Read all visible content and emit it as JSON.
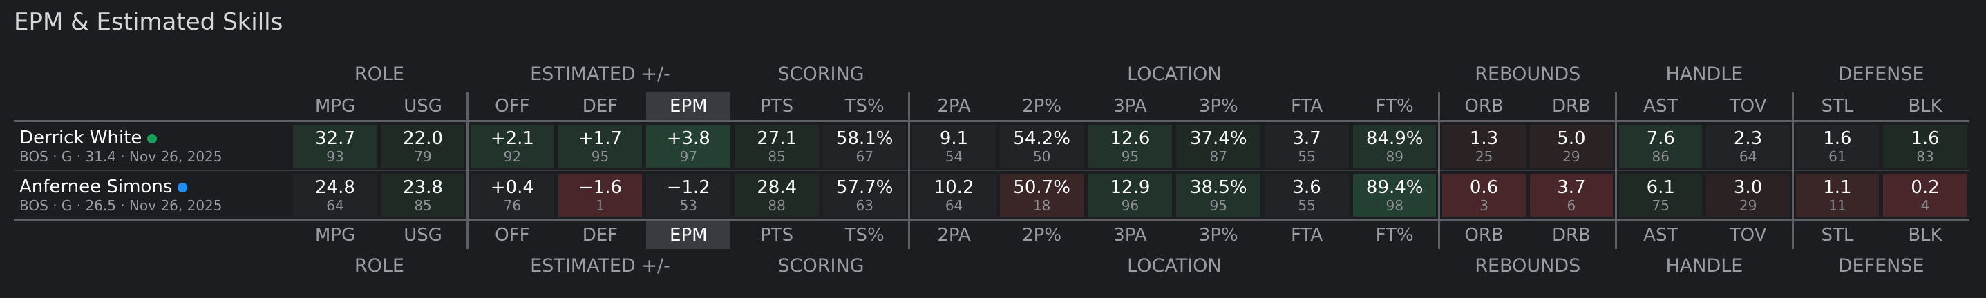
{
  "title": "EPM & Estimated Skills",
  "groups": [
    "ROLE",
    "ESTIMATED +/-",
    "SCORING",
    "LOCATION",
    "REBOUNDS",
    "HANDLE",
    "DEFENSE"
  ],
  "columns": [
    "MPG",
    "USG",
    "OFF",
    "DEF",
    "EPM",
    "PTS",
    "TS%",
    "2PA",
    "2P%",
    "3PA",
    "3P%",
    "FTA",
    "FT%",
    "ORB",
    "DRB",
    "AST",
    "TOV",
    "STL",
    "BLK"
  ],
  "players": [
    {
      "name": "Derrick White",
      "meta": "BOS · G · 31.4 · Nov 26, 2025",
      "dot_color": "#18a05a",
      "stats": [
        {
          "value": "32.7",
          "pct": "93"
        },
        {
          "value": "22.0",
          "pct": "79"
        },
        {
          "value": "+2.1",
          "pct": "92"
        },
        {
          "value": "+1.7",
          "pct": "95"
        },
        {
          "value": "+3.8",
          "pct": "97"
        },
        {
          "value": "27.1",
          "pct": "85"
        },
        {
          "value": "58.1%",
          "pct": "67"
        },
        {
          "value": "9.1",
          "pct": "54"
        },
        {
          "value": "54.2%",
          "pct": "50"
        },
        {
          "value": "12.6",
          "pct": "95"
        },
        {
          "value": "37.4%",
          "pct": "87"
        },
        {
          "value": "3.7",
          "pct": "55"
        },
        {
          "value": "84.9%",
          "pct": "89"
        },
        {
          "value": "1.3",
          "pct": "25"
        },
        {
          "value": "5.0",
          "pct": "29"
        },
        {
          "value": "7.6",
          "pct": "86"
        },
        {
          "value": "2.3",
          "pct": "64"
        },
        {
          "value": "1.6",
          "pct": "61"
        },
        {
          "value": "1.6",
          "pct": "83"
        }
      ]
    },
    {
      "name": "Anfernee Simons",
      "meta": "BOS · G · 26.5 · Nov 26, 2025",
      "dot_color": "#1e90ff",
      "stats": [
        {
          "value": "24.8",
          "pct": "64"
        },
        {
          "value": "23.8",
          "pct": "85"
        },
        {
          "value": "+0.4",
          "pct": "76"
        },
        {
          "value": "−1.6",
          "pct": "1"
        },
        {
          "value": "−1.2",
          "pct": "53"
        },
        {
          "value": "28.4",
          "pct": "88"
        },
        {
          "value": "57.7%",
          "pct": "63"
        },
        {
          "value": "10.2",
          "pct": "64"
        },
        {
          "value": "50.7%",
          "pct": "18"
        },
        {
          "value": "12.9",
          "pct": "96"
        },
        {
          "value": "38.5%",
          "pct": "95"
        },
        {
          "value": "3.6",
          "pct": "55"
        },
        {
          "value": "89.4%",
          "pct": "98"
        },
        {
          "value": "0.6",
          "pct": "3"
        },
        {
          "value": "3.7",
          "pct": "6"
        },
        {
          "value": "6.1",
          "pct": "75"
        },
        {
          "value": "3.0",
          "pct": "29"
        },
        {
          "value": "1.1",
          "pct": "11"
        },
        {
          "value": "0.2",
          "pct": "4"
        }
      ]
    }
  ]
}
